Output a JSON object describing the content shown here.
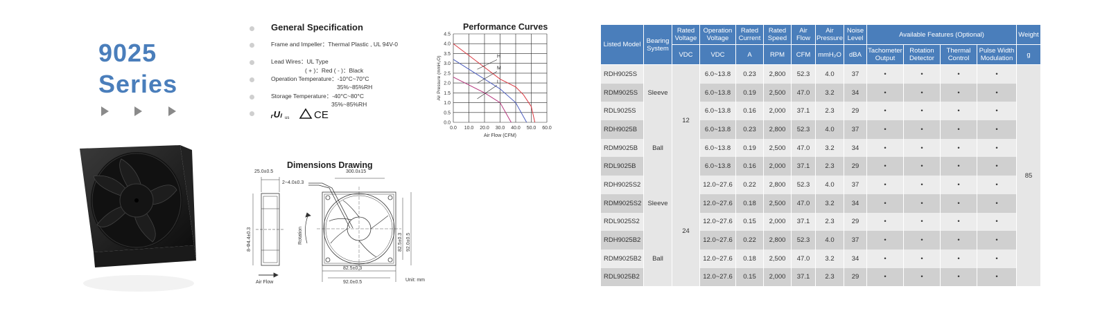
{
  "series": {
    "line1": "9025",
    "line2": "Series"
  },
  "spec": {
    "title": "General  Specification",
    "frame": "Frame and Impeller：Thermal  Plastic , UL 94V-0",
    "lead1": "Lead Wires：UL Type",
    "lead2": "( + )：Red    ( - )：Black",
    "op1": "Operation Temperature：-10°C~70°C",
    "op2": "35%~85%RH",
    "st1": "Storage Temperature：-40°C~80°C",
    "st2": "35%~85%RH",
    "certs": "UL △ CE"
  },
  "perf": {
    "title": "Performance Curves",
    "ylabel": "Air Pressure (mmH₂O)",
    "xlabel": "Air Flow (CFM)",
    "yticks": [
      "0.0",
      "0.5",
      "1.0",
      "1.5",
      "2.0",
      "2.5",
      "3.0",
      "3.5",
      "4.0",
      "4.5"
    ],
    "xticks": [
      "0.0",
      "10.0",
      "20.0",
      "30.0",
      "40.0",
      "50.0",
      "60.0"
    ],
    "labels": {
      "h": "H",
      "m": "M",
      "l": "L"
    },
    "colors": {
      "h": "#d9363e",
      "m": "#4a5bbd",
      "l": "#b3327a"
    }
  },
  "chart_data": {
    "type": "line",
    "title": "Performance Curves",
    "xlabel": "Air Flow (CFM)",
    "ylabel": "Air Pressure (mmH₂O)",
    "xlim": [
      0,
      60
    ],
    "ylim": [
      0,
      4.5
    ],
    "grid": true,
    "series": [
      {
        "name": "H",
        "x": [
          0,
          10,
          20,
          30,
          40,
          45,
          50,
          52.3
        ],
        "y": [
          4.0,
          3.4,
          2.8,
          2.2,
          1.8,
          1.4,
          0.8,
          0
        ]
      },
      {
        "name": "M",
        "x": [
          0,
          10,
          20,
          30,
          40,
          47.0
        ],
        "y": [
          3.2,
          2.7,
          2.2,
          1.7,
          1.0,
          0
        ]
      },
      {
        "name": "L",
        "x": [
          0,
          10,
          20,
          30,
          37.1
        ],
        "y": [
          2.3,
          1.9,
          1.5,
          1.0,
          0
        ]
      }
    ]
  },
  "dims": {
    "title": "Dimensions Drawing",
    "d1": "25.0±0.5",
    "d2": "2~4.0±0.3",
    "d3": "300.0±15",
    "d4": "8-Φ4.4±0.3",
    "d5": "82.5±0.3",
    "d6": "92.0±0.5",
    "d7": "82.5±0.3",
    "d8": "92.0±0.5",
    "rotation": "Rotation",
    "airflow": "Air Flow",
    "unit": "Unit: mm"
  },
  "table": {
    "headers": [
      "Listed Model",
      "Bearing System",
      "Rated Voltage",
      "Operation Voltage",
      "Rated Current",
      "Rated Speed",
      "Air Flow",
      "Air Pressure",
      "Noise Level",
      "Available Features (Optional)",
      "Weight"
    ],
    "features": [
      "Tachometer Output",
      "Rotation Detector",
      "Thermal Control",
      "Pulse Width Modulation"
    ],
    "units": [
      "VDC",
      "VDC",
      "A",
      "RPM",
      "CFM",
      "mmH₂O",
      "dBA",
      "g"
    ],
    "bearing": [
      "Sleeve",
      "Ball",
      "Sleeve",
      "Ball"
    ],
    "rated_voltage": [
      "12",
      "24"
    ],
    "weight": "85",
    "dot": "•",
    "rows": [
      [
        "RDH9025S",
        "6.0~13.8",
        "0.23",
        "2,800",
        "52.3",
        "4.0",
        "37"
      ],
      [
        "RDM9025S",
        "6.0~13.8",
        "0.19",
        "2,500",
        "47.0",
        "3.2",
        "34"
      ],
      [
        "RDL9025S",
        "6.0~13.8",
        "0.16",
        "2,000",
        "37.1",
        "2.3",
        "29"
      ],
      [
        "RDH9025B",
        "6.0~13.8",
        "0.23",
        "2,800",
        "52.3",
        "4.0",
        "37"
      ],
      [
        "RDM9025B",
        "6.0~13.8",
        "0.19",
        "2,500",
        "47.0",
        "3.2",
        "34"
      ],
      [
        "RDL9025B",
        "6.0~13.8",
        "0.16",
        "2,000",
        "37.1",
        "2.3",
        "29"
      ],
      [
        "RDH9025S2",
        "12.0~27.6",
        "0.22",
        "2,800",
        "52.3",
        "4.0",
        "37"
      ],
      [
        "RDM9025S2",
        "12.0~27.6",
        "0.18",
        "2,500",
        "47.0",
        "3.2",
        "34"
      ],
      [
        "RDL9025S2",
        "12.0~27.6",
        "0.15",
        "2,000",
        "37.1",
        "2.3",
        "29"
      ],
      [
        "RDH9025B2",
        "12.0~27.6",
        "0.22",
        "2,800",
        "52.3",
        "4.0",
        "37"
      ],
      [
        "RDM9025B2",
        "12.0~27.6",
        "0.18",
        "2,500",
        "47.0",
        "3.2",
        "34"
      ],
      [
        "RDL9025B2",
        "12.0~27.6",
        "0.15",
        "2,000",
        "37.1",
        "2.3",
        "29"
      ]
    ]
  }
}
